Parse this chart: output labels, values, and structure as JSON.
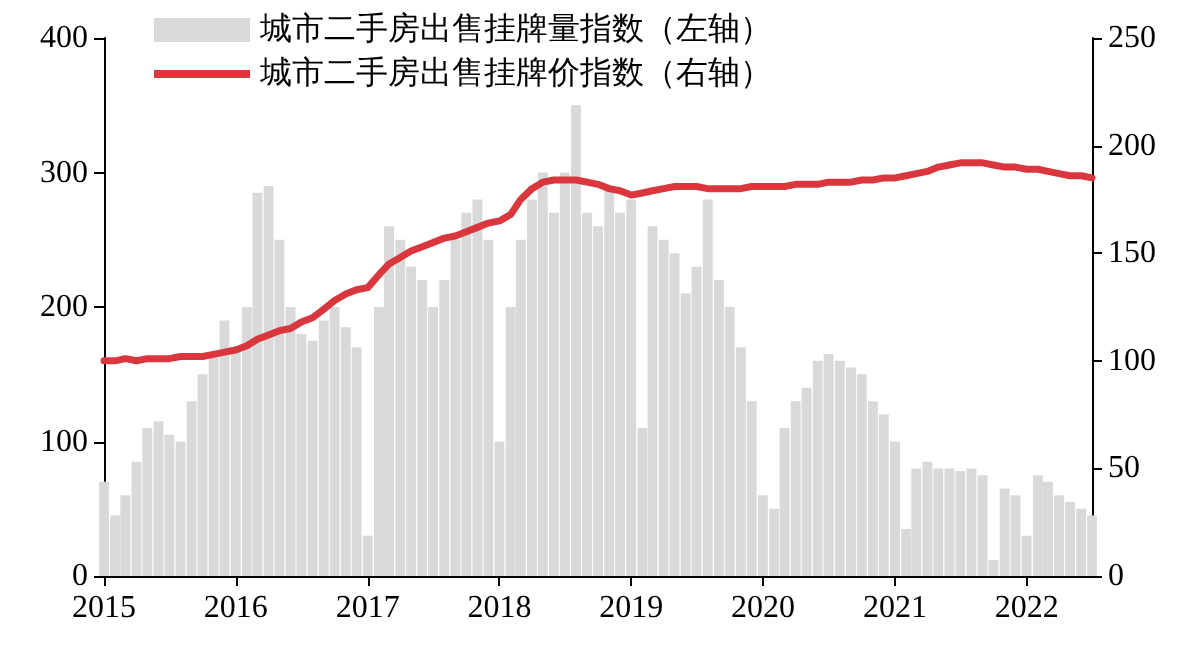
{
  "chart_data": {
    "type": "bar",
    "x": [
      "2015-01",
      "2015-02",
      "2015-03",
      "2015-04",
      "2015-05",
      "2015-06",
      "2015-07",
      "2015-08",
      "2015-09",
      "2015-10",
      "2015-11",
      "2015-12",
      "2016-01",
      "2016-02",
      "2016-03",
      "2016-04",
      "2016-05",
      "2016-06",
      "2016-07",
      "2016-08",
      "2016-09",
      "2016-10",
      "2016-11",
      "2016-12",
      "2017-01",
      "2017-02",
      "2017-03",
      "2017-04",
      "2017-05",
      "2017-06",
      "2017-07",
      "2017-08",
      "2017-09",
      "2017-10",
      "2017-11",
      "2017-12",
      "2018-01",
      "2018-02",
      "2018-03",
      "2018-04",
      "2018-05",
      "2018-06",
      "2018-07",
      "2018-08",
      "2018-09",
      "2018-10",
      "2018-11",
      "2018-12",
      "2019-01",
      "2019-02",
      "2019-03",
      "2019-04",
      "2019-05",
      "2019-06",
      "2019-07",
      "2019-08",
      "2019-09",
      "2019-10",
      "2019-11",
      "2019-12",
      "2020-01",
      "2020-02",
      "2020-03",
      "2020-04",
      "2020-05",
      "2020-06",
      "2020-07",
      "2020-08",
      "2020-09",
      "2020-10",
      "2020-11",
      "2020-12",
      "2021-01",
      "2021-02",
      "2021-03",
      "2021-04",
      "2021-05",
      "2021-06",
      "2021-07",
      "2021-08",
      "2021-09",
      "2021-10",
      "2021-11",
      "2021-12",
      "2022-01",
      "2022-02",
      "2022-03",
      "2022-04",
      "2022-05",
      "2022-06",
      "2022-07"
    ],
    "series": [
      {
        "name": "城市二手房出售挂牌量指数（左轴）",
        "color": "#d9d9d9",
        "values": [
          70,
          45,
          60,
          85,
          110,
          115,
          105,
          100,
          130,
          150,
          165,
          190,
          170,
          200,
          285,
          290,
          250,
          200,
          180,
          175,
          190,
          200,
          185,
          170,
          30,
          200,
          260,
          250,
          230,
          220,
          200,
          220,
          250,
          270,
          280,
          250,
          100,
          200,
          250,
          280,
          300,
          270,
          300,
          350,
          270,
          260,
          290,
          270,
          280,
          110,
          260,
          250,
          240,
          210,
          230,
          280,
          220,
          200,
          170,
          130,
          60,
          50,
          110,
          130,
          140,
          160,
          165,
          160,
          155,
          150,
          130,
          120,
          100,
          35,
          80,
          85,
          80,
          80,
          78,
          80,
          75,
          12,
          65,
          60,
          30,
          75,
          70,
          60,
          55,
          50,
          45
        ]
      },
      {
        "name": "城市二手房出售挂牌价指数（右轴）",
        "type": "line",
        "axis": "y2",
        "color": "#d9363e",
        "values": [
          100,
          100,
          101,
          100,
          101,
          101,
          101,
          102,
          102,
          102,
          103,
          104,
          105,
          107,
          110,
          112,
          114,
          115,
          118,
          120,
          124,
          128,
          131,
          133,
          134,
          140,
          145,
          148,
          151,
          153,
          155,
          157,
          158,
          160,
          162,
          164,
          165,
          168,
          175,
          180,
          183,
          184,
          184,
          184,
          183,
          182,
          180,
          179,
          177,
          178,
          179,
          180,
          181,
          181,
          181,
          180,
          180,
          180,
          180,
          181,
          181,
          181,
          181,
          182,
          182,
          182,
          183,
          183,
          183,
          184,
          184,
          185,
          185,
          186,
          187,
          188,
          190,
          191,
          192,
          192,
          192,
          191,
          190,
          190,
          189,
          189,
          188,
          187,
          186,
          186,
          185
        ]
      }
    ],
    "xlim": [
      "2015-01",
      "2022-07"
    ],
    "xticks": [
      {
        "value": "2015-01",
        "label": "2015"
      },
      {
        "value": "2016-01",
        "label": "2016"
      },
      {
        "value": "2017-01",
        "label": "2017"
      },
      {
        "value": "2018-01",
        "label": "2018"
      },
      {
        "value": "2019-01",
        "label": "2019"
      },
      {
        "value": "2020-01",
        "label": "2020"
      },
      {
        "value": "2021-01",
        "label": "2021"
      },
      {
        "value": "2022-01",
        "label": "2022"
      }
    ],
    "ylim": [
      0,
      400
    ],
    "yticks": [
      0,
      100,
      200,
      300,
      400
    ],
    "y2lim": [
      0,
      250
    ],
    "y2ticks": [
      0,
      50,
      100,
      150,
      200,
      250
    ],
    "legend": "top left",
    "grid": false,
    "marker": "none",
    "line_style": "solid"
  }
}
